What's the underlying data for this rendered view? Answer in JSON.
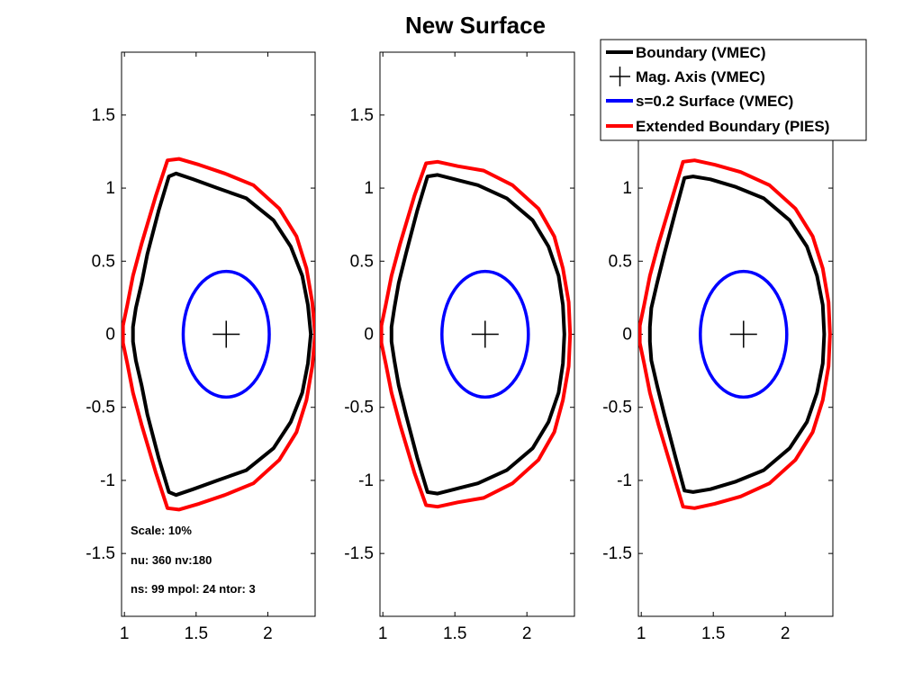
{
  "chart_data": {
    "type": "line",
    "title": "New Surface",
    "legend": {
      "placement": "top-right",
      "entries": [
        {
          "label": "Boundary (VMEC)",
          "color": "#000000",
          "marker": "line"
        },
        {
          "label": "Mag. Axis (VMEC)",
          "color": "#000000",
          "marker": "plus"
        },
        {
          "label": "s=0.2 Surface (VMEC)",
          "color": "#0000ff",
          "marker": "line"
        },
        {
          "label": "Extended Boundary (PIES)",
          "color": "#ff0000",
          "marker": "line"
        }
      ]
    },
    "annotations": [
      "Scale: 10%",
      "nu: 360  nv:180",
      "ns: 99  mpol: 24  ntor: 3"
    ],
    "panels": [
      {
        "xlim": [
          0.98,
          2.33
        ],
        "ylim": [
          -1.93,
          1.93
        ],
        "xticks": [
          {
            "v": 1,
            "label": "1"
          },
          {
            "v": 1.5,
            "label": "1.5"
          },
          {
            "v": 2,
            "label": "2"
          }
        ],
        "yticks": [
          {
            "v": 1.5,
            "label": "1.5"
          },
          {
            "v": 1,
            "label": "1"
          },
          {
            "v": 0.5,
            "label": "0.5"
          },
          {
            "v": 0,
            "label": "0"
          },
          {
            "v": -0.5,
            "label": "-0.5"
          },
          {
            "v": -1,
            "label": "-1"
          },
          {
            "v": -1.5,
            "label": "-1.5"
          }
        ],
        "axis": {
          "r": 1.71,
          "z": 0.0
        },
        "s02": {
          "rc": 1.71,
          "zc": 0.0,
          "a": 0.3,
          "b": 0.43
        },
        "boundary": {
          "r": [
            2.3,
            2.28,
            2.24,
            2.16,
            2.04,
            1.85,
            1.65,
            1.48,
            1.36,
            1.31,
            1.24,
            1.16,
            1.12,
            1.08,
            1.06,
            1.06,
            1.06,
            1.08,
            1.12,
            1.16,
            1.24,
            1.31,
            1.36,
            1.48,
            1.65,
            1.85,
            2.04,
            2.16,
            2.24,
            2.28,
            2.3
          ],
          "z": [
            0.0,
            0.2,
            0.4,
            0.6,
            0.78,
            0.93,
            1.0,
            1.06,
            1.1,
            1.08,
            0.85,
            0.55,
            0.35,
            0.18,
            0.05,
            0.0,
            -0.05,
            -0.18,
            -0.35,
            -0.55,
            -0.85,
            -1.08,
            -1.1,
            -1.06,
            -1.0,
            -0.93,
            -0.78,
            -0.6,
            -0.4,
            -0.2,
            0.0
          ]
        },
        "extended": {
          "r": [
            2.33,
            2.31,
            2.27,
            2.2,
            2.08,
            1.9,
            1.7,
            1.52,
            1.38,
            1.3,
            1.22,
            1.12,
            1.06,
            1.02,
            0.99,
            0.99,
            0.99,
            1.02,
            1.06,
            1.12,
            1.22,
            1.3,
            1.38,
            1.52,
            1.7,
            1.9,
            2.08,
            2.2,
            2.27,
            2.31,
            2.33
          ],
          "z": [
            0.0,
            0.22,
            0.45,
            0.67,
            0.86,
            1.02,
            1.1,
            1.16,
            1.2,
            1.19,
            0.95,
            0.62,
            0.4,
            0.2,
            0.06,
            0.0,
            -0.06,
            -0.2,
            -0.4,
            -0.62,
            -0.95,
            -1.19,
            -1.2,
            -1.16,
            -1.1,
            -1.02,
            -0.86,
            -0.67,
            -0.45,
            -0.22,
            0.0
          ]
        }
      },
      {
        "xlim": [
          0.98,
          2.33
        ],
        "ylim": [
          -1.93,
          1.93
        ],
        "xticks": [
          {
            "v": 1,
            "label": "1"
          },
          {
            "v": 1.5,
            "label": "1.5"
          },
          {
            "v": 2,
            "label": "2"
          }
        ],
        "yticks": [
          {
            "v": 1.5,
            "label": "1.5"
          },
          {
            "v": 1,
            "label": "1"
          },
          {
            "v": 0.5,
            "label": "0.5"
          },
          {
            "v": 0,
            "label": "0"
          },
          {
            "v": -0.5,
            "label": "-0.5"
          },
          {
            "v": -1,
            "label": "-1"
          },
          {
            "v": -1.5,
            "label": "-1.5"
          }
        ],
        "axis": {
          "r": 1.71,
          "z": 0.0
        },
        "s02": {
          "rc": 1.71,
          "zc": 0.0,
          "a": 0.3,
          "b": 0.43
        },
        "boundary": {
          "r": [
            2.26,
            2.25,
            2.22,
            2.15,
            2.04,
            1.86,
            1.66,
            1.5,
            1.38,
            1.31,
            1.24,
            1.16,
            1.11,
            1.08,
            1.06,
            1.06,
            1.06,
            1.08,
            1.11,
            1.16,
            1.24,
            1.31,
            1.38,
            1.5,
            1.66,
            1.86,
            2.04,
            2.15,
            2.22,
            2.25,
            2.26
          ],
          "z": [
            0.0,
            0.2,
            0.4,
            0.6,
            0.78,
            0.93,
            1.02,
            1.06,
            1.09,
            1.08,
            0.85,
            0.55,
            0.35,
            0.18,
            0.05,
            0.0,
            -0.05,
            -0.18,
            -0.35,
            -0.55,
            -0.85,
            -1.08,
            -1.09,
            -1.06,
            -1.02,
            -0.93,
            -0.78,
            -0.6,
            -0.4,
            -0.2,
            0.0
          ]
        },
        "extended": {
          "r": [
            2.3,
            2.29,
            2.25,
            2.19,
            2.08,
            1.9,
            1.7,
            1.52,
            1.38,
            1.3,
            1.22,
            1.12,
            1.06,
            1.02,
            0.99,
            0.99,
            0.99,
            1.02,
            1.06,
            1.12,
            1.22,
            1.3,
            1.38,
            1.52,
            1.7,
            1.9,
            2.08,
            2.19,
            2.25,
            2.29,
            2.3
          ],
          "z": [
            0.0,
            0.22,
            0.45,
            0.67,
            0.86,
            1.02,
            1.12,
            1.15,
            1.18,
            1.17,
            0.95,
            0.62,
            0.4,
            0.2,
            0.06,
            0.0,
            -0.06,
            -0.2,
            -0.4,
            -0.62,
            -0.95,
            -1.17,
            -1.18,
            -1.15,
            -1.12,
            -1.02,
            -0.86,
            -0.67,
            -0.45,
            -0.22,
            0.0
          ]
        }
      },
      {
        "xlim": [
          0.98,
          2.33
        ],
        "ylim": [
          -1.93,
          1.93
        ],
        "xticks": [
          {
            "v": 1,
            "label": "1"
          },
          {
            "v": 1.5,
            "label": "1.5"
          },
          {
            "v": 2,
            "label": "2"
          }
        ],
        "yticks": [
          {
            "v": 1.5,
            "label": "1.5"
          },
          {
            "v": 1,
            "label": "1"
          },
          {
            "v": 0.5,
            "label": "0.5"
          },
          {
            "v": 0,
            "label": "0"
          },
          {
            "v": -0.5,
            "label": "-0.5"
          },
          {
            "v": -1,
            "label": "-1"
          },
          {
            "v": -1.5,
            "label": "-1.5"
          }
        ],
        "axis": {
          "r": 1.71,
          "z": 0.0
        },
        "s02": {
          "rc": 1.71,
          "zc": 0.0,
          "a": 0.3,
          "b": 0.43
        },
        "boundary": {
          "r": [
            2.27,
            2.26,
            2.22,
            2.15,
            2.03,
            1.85,
            1.65,
            1.48,
            1.36,
            1.3,
            1.24,
            1.16,
            1.11,
            1.07,
            1.06,
            1.06,
            1.06,
            1.07,
            1.11,
            1.16,
            1.24,
            1.3,
            1.36,
            1.48,
            1.65,
            1.85,
            2.03,
            2.15,
            2.22,
            2.26,
            2.27
          ],
          "z": [
            0.0,
            0.2,
            0.4,
            0.6,
            0.78,
            0.93,
            1.01,
            1.06,
            1.08,
            1.07,
            0.85,
            0.55,
            0.35,
            0.18,
            0.05,
            0.0,
            -0.05,
            -0.18,
            -0.35,
            -0.55,
            -0.85,
            -1.07,
            -1.08,
            -1.06,
            -1.01,
            -0.93,
            -0.78,
            -0.6,
            -0.4,
            -0.2,
            0.0
          ]
        },
        "extended": {
          "r": [
            2.31,
            2.3,
            2.26,
            2.19,
            2.07,
            1.89,
            1.69,
            1.51,
            1.37,
            1.29,
            1.22,
            1.12,
            1.06,
            1.02,
            0.99,
            0.99,
            0.99,
            1.02,
            1.06,
            1.12,
            1.22,
            1.29,
            1.37,
            1.51,
            1.69,
            1.89,
            2.07,
            2.19,
            2.26,
            2.3,
            2.31
          ],
          "z": [
            0.0,
            0.22,
            0.45,
            0.67,
            0.86,
            1.02,
            1.11,
            1.16,
            1.19,
            1.18,
            0.95,
            0.62,
            0.4,
            0.2,
            0.06,
            0.0,
            -0.06,
            -0.2,
            -0.4,
            -0.62,
            -0.95,
            -1.18,
            -1.19,
            -1.16,
            -1.11,
            -1.02,
            -0.86,
            -0.67,
            -0.45,
            -0.22,
            0.0
          ]
        }
      }
    ]
  }
}
